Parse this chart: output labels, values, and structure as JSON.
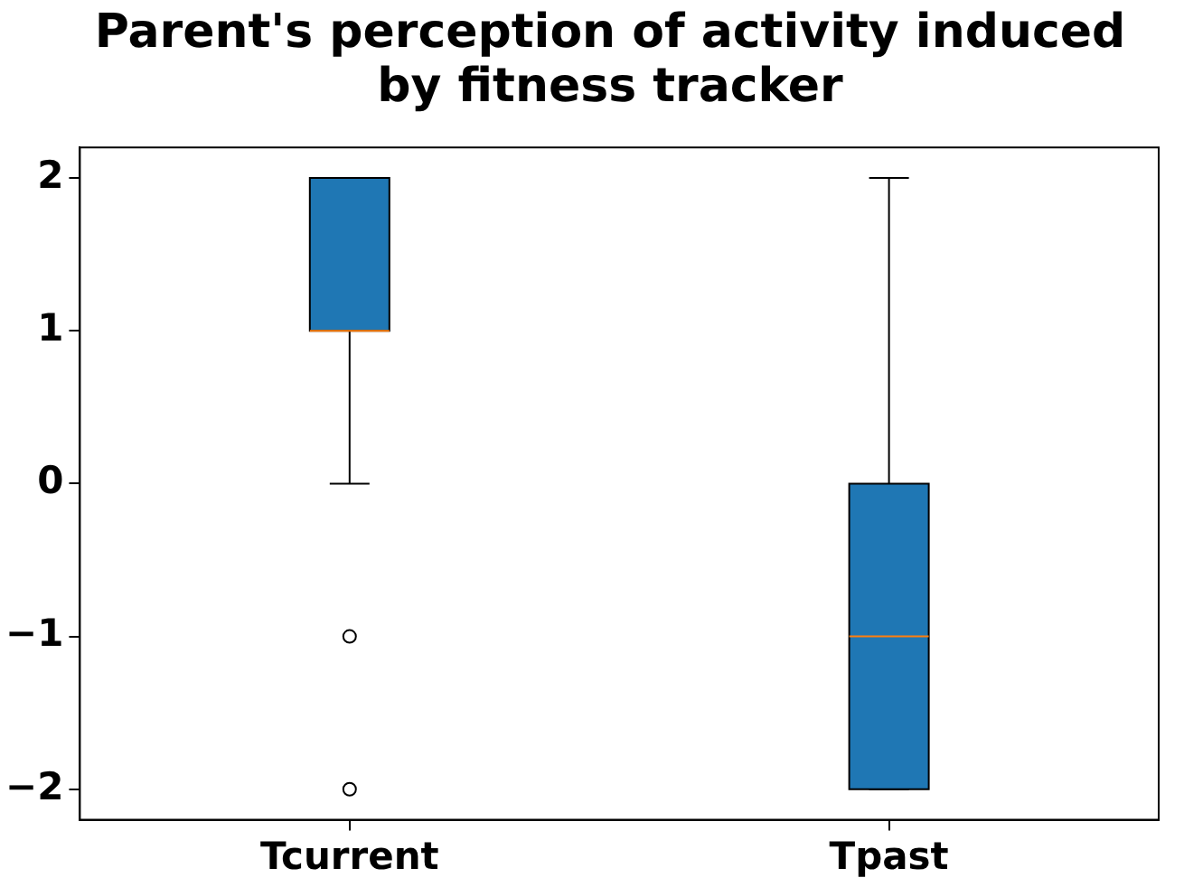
{
  "chart_data": {
    "type": "box",
    "title": "Parent's perception of activity induced by fitness tracker",
    "categories": [
      "Tcurrent",
      "Tpast"
    ],
    "series": [
      {
        "color": "#1f77b4",
        "boxes": [
          {
            "low": 0,
            "q1": 1,
            "median": 1,
            "q3": 2,
            "high": 2,
            "outliers": [
              -1,
              -2
            ]
          },
          {
            "low": -2,
            "q1": -2,
            "median": -1,
            "q3": 0,
            "high": 2
          }
        ]
      }
    ],
    "ylim": [
      -2.2,
      2.2
    ],
    "yticks": [
      -2,
      -1,
      0,
      1,
      2
    ],
    "grid": false,
    "legend": false
  }
}
